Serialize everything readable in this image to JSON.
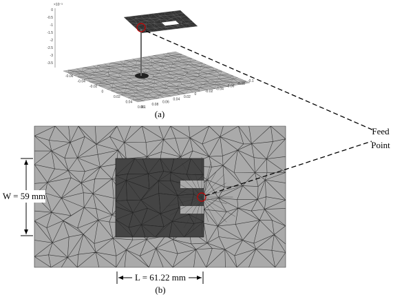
{
  "figure_a": {
    "caption": "(a)",
    "z_axis": {
      "exponent": "×10⁻³",
      "ticks": [
        "0",
        "-0.5",
        "-1",
        "-1.5",
        "-2",
        "-2.5",
        "-3",
        "-3.5"
      ]
    },
    "x_axis": {
      "ticks": [
        "-0.06",
        "-0.04",
        "-0.02",
        "0",
        "0.02",
        "0.04",
        "0.06"
      ]
    },
    "y_axis": {
      "ticks": [
        "0.1",
        "0.08",
        "0.06",
        "0.04",
        "0.02",
        "0",
        "-0.02",
        "-0.04",
        "-0.06",
        "-0.08",
        "-0.1"
      ]
    }
  },
  "figure_b": {
    "caption": "(b)",
    "feed_label": [
      "Feed",
      "Point"
    ],
    "width_label": "W = 59 mm",
    "length_label": "L = 61.22 mm"
  }
}
